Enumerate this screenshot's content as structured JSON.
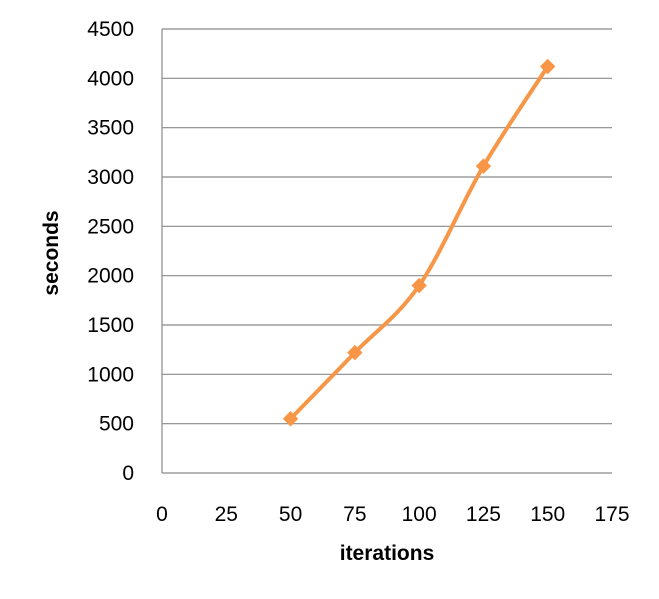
{
  "chart_data": {
    "type": "scatter",
    "title": "",
    "xlabel": "iterations",
    "ylabel": "seconds",
    "xlim": [
      0,
      175
    ],
    "ylim": [
      0,
      4500
    ],
    "xticks": [
      0,
      25,
      50,
      75,
      100,
      125,
      150,
      175
    ],
    "yticks": [
      0,
      500,
      1000,
      1500,
      2000,
      2500,
      3000,
      3500,
      4000,
      4500
    ],
    "grid": "horizontal",
    "legend": "none",
    "smooth_lines": true,
    "marker": "diamond",
    "series": [
      {
        "color": "#F79646",
        "x": [
          50,
          75,
          100,
          125,
          150
        ],
        "y": [
          550,
          1220,
          1900,
          3110,
          4120
        ]
      }
    ]
  }
}
